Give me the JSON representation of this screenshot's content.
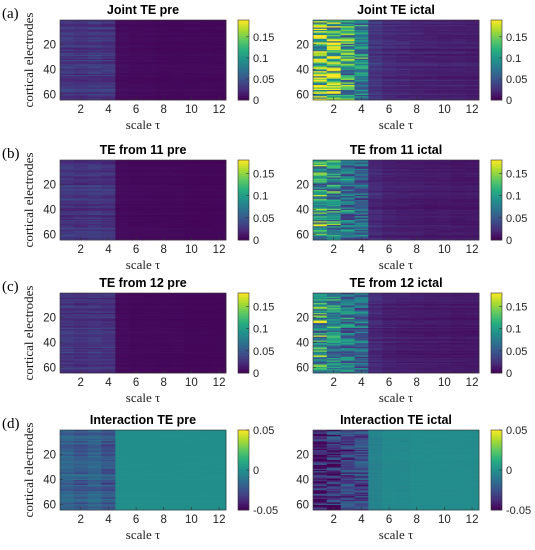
{
  "chart_data": [
    {
      "id": "a-pre",
      "panel_label": "(a)",
      "type": "heatmap",
      "title": "Joint TE pre",
      "xlabel": "scale τ",
      "ylabel": "cortical electrodes",
      "x_ticks": [
        2,
        4,
        6,
        8,
        10,
        12
      ],
      "y_ticks": [
        20,
        40,
        60
      ],
      "xlim": [
        0.5,
        12.5
      ],
      "ylim": [
        64,
        1
      ],
      "colorbar": {
        "ticks": [
          0,
          0.05,
          0.1,
          0.15
        ],
        "tick_labels": [
          "0",
          "0.05",
          "0.1",
          "0.15"
        ],
        "range": [
          0,
          0.19
        ]
      },
      "rows": 64,
      "cols": 12,
      "col_means": [
        0.03,
        0.028,
        0.03,
        0.028,
        0.006,
        0.005,
        0.005,
        0.004,
        0.004,
        0.004,
        0.004,
        0.004
      ]
    },
    {
      "id": "a-ictal",
      "panel_label": "",
      "type": "heatmap",
      "title": "Joint TE ictal",
      "xlabel": "scale τ",
      "ylabel": "",
      "x_ticks": [
        2,
        4,
        6,
        8,
        10,
        12
      ],
      "y_ticks": [
        20,
        40,
        60
      ],
      "xlim": [
        0.5,
        12.5
      ],
      "ylim": [
        64,
        1
      ],
      "colorbar": {
        "ticks": [
          0,
          0.05,
          0.1,
          0.15
        ],
        "tick_labels": [
          "0",
          "0.05",
          "0.1",
          "0.15"
        ],
        "range": [
          0,
          0.19
        ]
      },
      "rows": 64,
      "cols": 12,
      "col_means": [
        0.15,
        0.13,
        0.11,
        0.09,
        0.03,
        0.022,
        0.02,
        0.018,
        0.017,
        0.016,
        0.016,
        0.015
      ]
    },
    {
      "id": "b-pre",
      "panel_label": "(b)",
      "type": "heatmap",
      "title": "TE from 11 pre",
      "xlabel": "scale τ",
      "ylabel": "cortical electrodes",
      "x_ticks": [
        2,
        4,
        6,
        8,
        10,
        12
      ],
      "y_ticks": [
        20,
        40,
        60
      ],
      "xlim": [
        0.5,
        12.5
      ],
      "ylim": [
        64,
        1
      ],
      "colorbar": {
        "ticks": [
          0,
          0.05,
          0.1,
          0.15
        ],
        "tick_labels": [
          "0",
          "0.05",
          "0.1",
          "0.15"
        ],
        "range": [
          0,
          0.18
        ]
      },
      "rows": 64,
      "cols": 12,
      "col_means": [
        0.028,
        0.026,
        0.028,
        0.026,
        0.005,
        0.004,
        0.004,
        0.004,
        0.004,
        0.003,
        0.003,
        0.003
      ]
    },
    {
      "id": "b-ictal",
      "panel_label": "",
      "type": "heatmap",
      "title": "TE from 11 ictal",
      "xlabel": "scale τ",
      "ylabel": "",
      "x_ticks": [
        2,
        4,
        6,
        8,
        10,
        12
      ],
      "y_ticks": [
        20,
        40,
        60
      ],
      "xlim": [
        0.5,
        12.5
      ],
      "ylim": [
        64,
        1
      ],
      "colorbar": {
        "ticks": [
          0,
          0.05,
          0.1,
          0.15
        ],
        "tick_labels": [
          "0",
          "0.05",
          "0.1",
          "0.15"
        ],
        "range": [
          0,
          0.18
        ]
      },
      "rows": 64,
      "cols": 12,
      "col_means": [
        0.1,
        0.08,
        0.065,
        0.055,
        0.02,
        0.015,
        0.014,
        0.013,
        0.012,
        0.012,
        0.011,
        0.011
      ]
    },
    {
      "id": "c-pre",
      "panel_label": "(c)",
      "type": "heatmap",
      "title": "TE from 12 pre",
      "xlabel": "scale τ",
      "ylabel": "cortical electrodes",
      "x_ticks": [
        2,
        4,
        6,
        8,
        10,
        12
      ],
      "y_ticks": [
        20,
        40,
        60
      ],
      "xlim": [
        0.5,
        12.5
      ],
      "ylim": [
        64,
        1
      ],
      "colorbar": {
        "ticks": [
          0,
          0.05,
          0.1,
          0.15
        ],
        "tick_labels": [
          "0",
          "0.05",
          "0.1",
          "0.15"
        ],
        "range": [
          0,
          0.18
        ]
      },
      "rows": 64,
      "cols": 12,
      "col_means": [
        0.028,
        0.026,
        0.028,
        0.026,
        0.005,
        0.004,
        0.004,
        0.004,
        0.004,
        0.003,
        0.003,
        0.003
      ]
    },
    {
      "id": "c-ictal",
      "panel_label": "",
      "type": "heatmap",
      "title": "TE from 12 ictal",
      "xlabel": "scale τ",
      "ylabel": "",
      "x_ticks": [
        2,
        4,
        6,
        8,
        10,
        12
      ],
      "y_ticks": [
        20,
        40,
        60
      ],
      "xlim": [
        0.5,
        12.5
      ],
      "ylim": [
        64,
        1
      ],
      "colorbar": {
        "ticks": [
          0,
          0.05,
          0.1,
          0.15
        ],
        "tick_labels": [
          "0",
          "0.05",
          "0.1",
          "0.15"
        ],
        "range": [
          0,
          0.18
        ]
      },
      "rows": 64,
      "cols": 12,
      "col_means": [
        0.1,
        0.08,
        0.065,
        0.055,
        0.02,
        0.015,
        0.014,
        0.013,
        0.012,
        0.012,
        0.011,
        0.011
      ]
    },
    {
      "id": "d-pre",
      "panel_label": "(d)",
      "type": "heatmap",
      "title": "Interaction TE pre",
      "xlabel": "scale τ",
      "ylabel": "cortical electrodes",
      "x_ticks": [
        2,
        4,
        6,
        8,
        10,
        12
      ],
      "y_ticks": [
        20,
        40,
        60
      ],
      "xlim": [
        0.5,
        12.5
      ],
      "ylim": [
        64,
        1
      ],
      "colorbar": {
        "ticks": [
          -0.05,
          0,
          0.05
        ],
        "tick_labels": [
          "-0.05",
          "0",
          "0.05"
        ],
        "range": [
          -0.05,
          0.05
        ]
      },
      "rows": 64,
      "cols": 12,
      "col_means": [
        -0.018,
        -0.022,
        -0.018,
        -0.024,
        -0.001,
        -0.001,
        -0.001,
        -0.001,
        -0.001,
        -0.001,
        -0.001,
        -0.001
      ]
    },
    {
      "id": "d-ictal",
      "panel_label": "",
      "type": "heatmap",
      "title": "Interaction TE ictal",
      "xlabel": "scale τ",
      "ylabel": "",
      "x_ticks": [
        2,
        4,
        6,
        8,
        10,
        12
      ],
      "y_ticks": [
        20,
        40,
        60
      ],
      "xlim": [
        0.5,
        12.5
      ],
      "ylim": [
        64,
        1
      ],
      "colorbar": {
        "ticks": [
          -0.05,
          0,
          0.05
        ],
        "tick_labels": [
          "-0.05",
          "0",
          "0.05"
        ],
        "range": [
          -0.05,
          0.05
        ]
      },
      "rows": 64,
      "cols": 12,
      "col_means": [
        -0.042,
        -0.036,
        -0.03,
        -0.028,
        -0.006,
        -0.003,
        -0.003,
        -0.002,
        -0.002,
        -0.002,
        -0.002,
        -0.002
      ]
    }
  ],
  "colormap": [
    "#440154",
    "#472d7b",
    "#3b528b",
    "#2c728e",
    "#21918c",
    "#28ae80",
    "#5ec962",
    "#addc30",
    "#fde725"
  ]
}
